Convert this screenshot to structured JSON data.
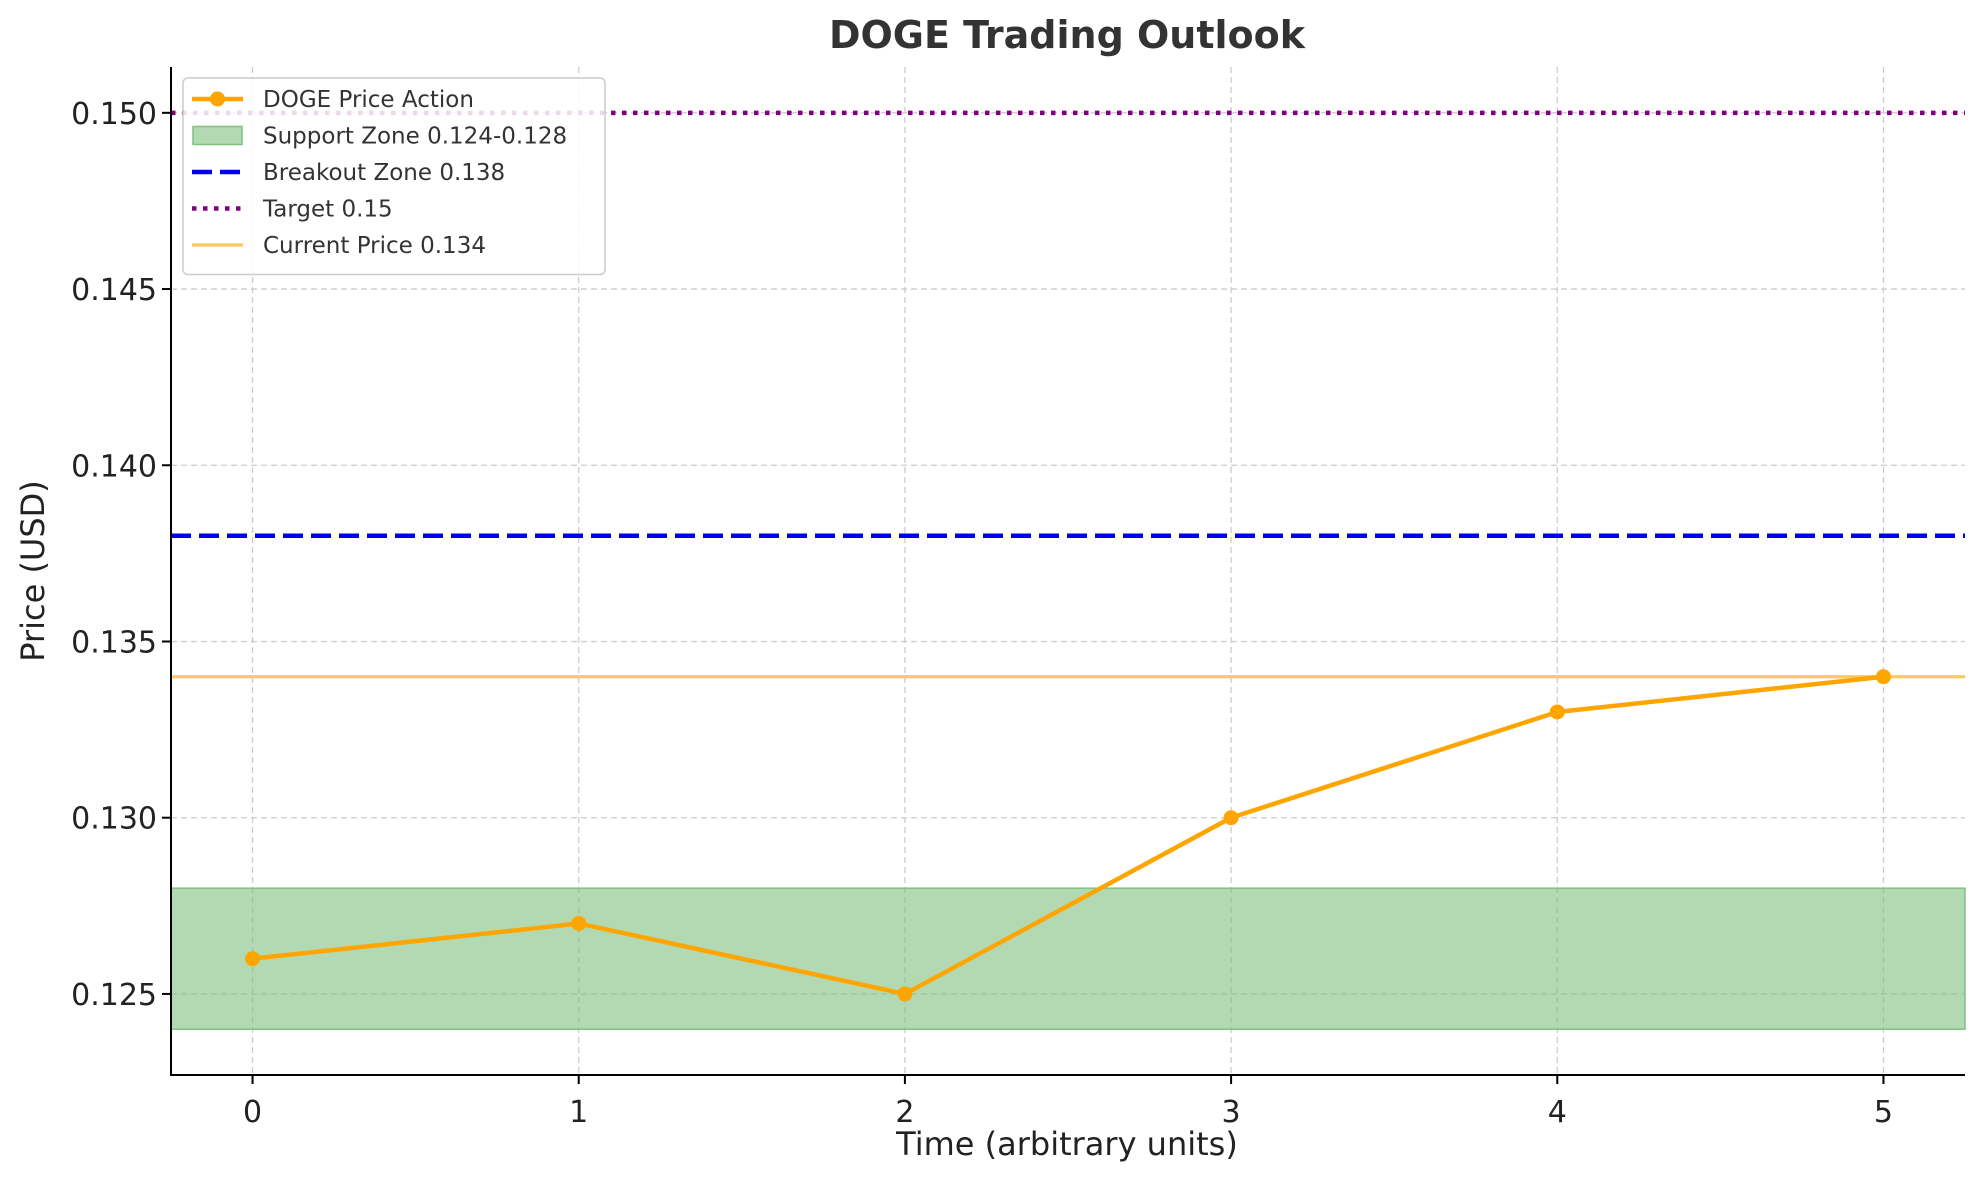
{
  "chart_data": {
    "type": "line",
    "title": "DOGE Trading Outlook",
    "xlabel": "Time (arbitrary units)",
    "ylabel": "Price (USD)",
    "xlim": [
      -0.25,
      5.25
    ],
    "ylim": [
      0.1227,
      0.1513
    ],
    "x_ticks": [
      0,
      1,
      2,
      3,
      4,
      5
    ],
    "x_tick_labels": [
      "0",
      "1",
      "2",
      "3",
      "4",
      "5"
    ],
    "y_ticks": [
      0.125,
      0.13,
      0.135,
      0.14,
      0.145,
      0.15
    ],
    "y_tick_labels": [
      "0.125",
      "0.130",
      "0.135",
      "0.140",
      "0.145",
      "0.150"
    ],
    "grid": true,
    "legend_position": "top-left",
    "series": [
      {
        "name": "DOGE Price Action",
        "x": [
          0,
          1,
          2,
          3,
          4,
          5
        ],
        "values": [
          0.126,
          0.127,
          0.125,
          0.13,
          0.133,
          0.134
        ],
        "color": "#FFA500",
        "style": "solid-with-markers"
      }
    ],
    "bands": [
      {
        "name": "Support Zone 0.124-0.128",
        "y_from": 0.124,
        "y_to": 0.128,
        "color": "#80C080"
      }
    ],
    "hlines": [
      {
        "name": "Breakout Zone 0.138",
        "y": 0.138,
        "color": "#0000EE",
        "style": "dashed"
      },
      {
        "name": "Target 0.15",
        "y": 0.15,
        "color": "#800080",
        "style": "dotted"
      },
      {
        "name": "Current Price 0.134",
        "y": 0.134,
        "color": "#FFC864",
        "style": "solid"
      }
    ],
    "legend": [
      {
        "label": "DOGE Price Action",
        "kind": "marker-line",
        "color": "#FFA500"
      },
      {
        "label": "Support Zone 0.124-0.128",
        "kind": "patch",
        "color": "#80C080"
      },
      {
        "label": "Breakout Zone 0.138",
        "kind": "dashed",
        "color": "#0000EE"
      },
      {
        "label": "Target 0.15",
        "kind": "dotted",
        "color": "#800080"
      },
      {
        "label": "Current Price 0.134",
        "kind": "solid",
        "color": "#FFC864"
      }
    ]
  }
}
